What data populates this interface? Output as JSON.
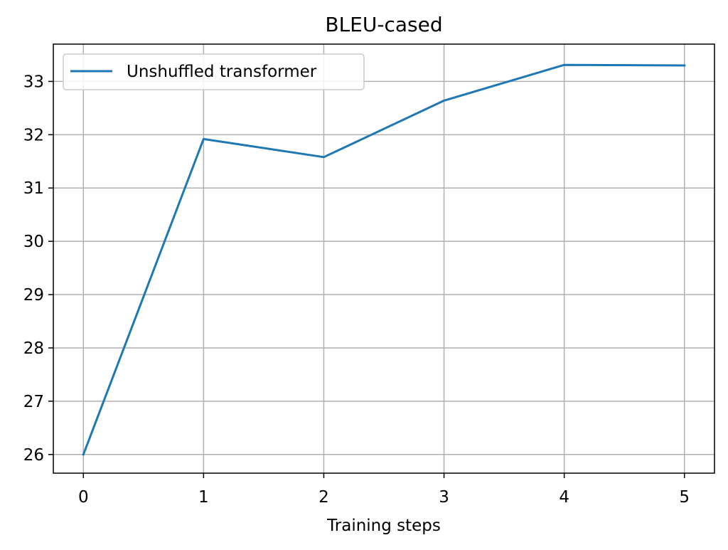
{
  "chart_data": {
    "type": "line",
    "title": "BLEU-cased",
    "xlabel": "Training steps",
    "ylabel": "",
    "x": [
      0,
      1,
      2,
      3,
      4,
      5
    ],
    "series": [
      {
        "name": "Unshuffled transformer",
        "color": "#1f77b4",
        "values": [
          26.0,
          31.92,
          31.58,
          32.64,
          33.31,
          33.3
        ]
      }
    ],
    "xlim": [
      -0.25,
      5.25
    ],
    "ylim": [
      25.65,
      33.7
    ],
    "xticks": [
      "0",
      "1",
      "2",
      "3",
      "4",
      "5"
    ],
    "yticks": [
      "26",
      "27",
      "28",
      "29",
      "30",
      "31",
      "32",
      "33"
    ],
    "grid": true,
    "legend_position": "top-left"
  }
}
